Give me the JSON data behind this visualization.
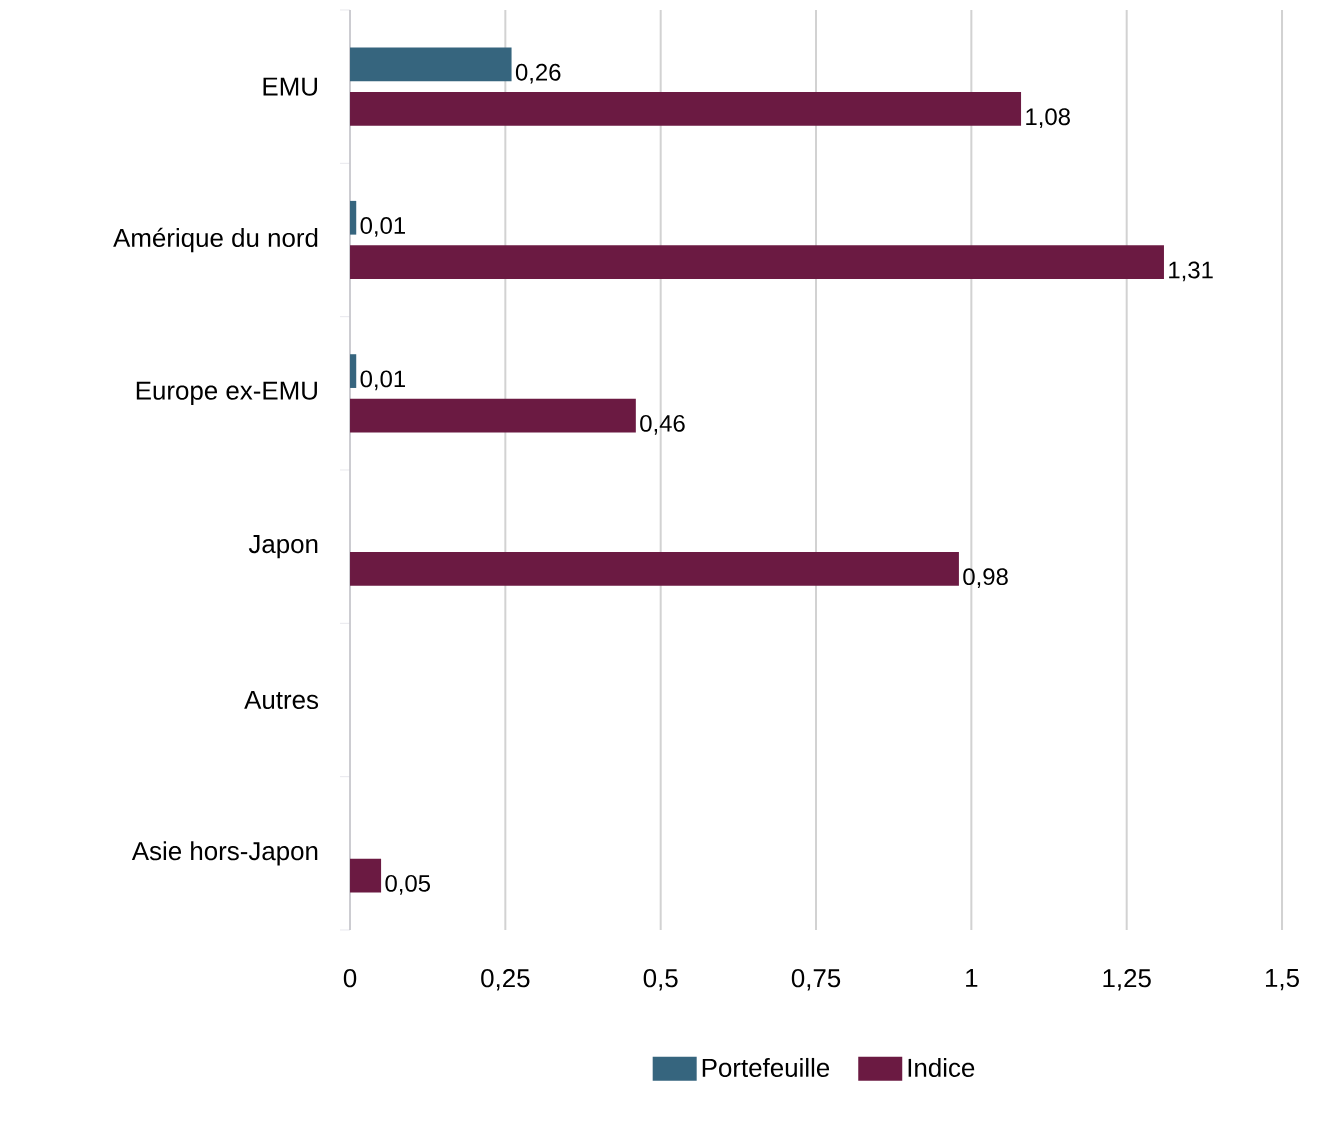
{
  "chart_data": {
    "type": "bar",
    "orientation": "horizontal",
    "categories": [
      "EMU",
      "Amérique du nord",
      "Europe ex-EMU",
      "Japon",
      "Autres",
      "Asie hors-Japon"
    ],
    "series": [
      {
        "name": "Portefeuille",
        "color": "#36657e",
        "values": [
          0.26,
          0.01,
          0.01,
          null,
          null,
          null
        ],
        "value_labels": [
          "0,26",
          "0,01",
          "0,01",
          null,
          null,
          null
        ]
      },
      {
        "name": "Indice",
        "color": "#6b1a42",
        "values": [
          1.08,
          1.31,
          0.46,
          0.98,
          null,
          0.05
        ],
        "value_labels": [
          "1,08",
          "1,31",
          "0,46",
          "0,98",
          null,
          "0,05"
        ]
      }
    ],
    "xlim": [
      0,
      1.5
    ],
    "xticks": [
      0,
      {
        "value": 0.25,
        "label": "0,25"
      },
      {
        "value": 0.5,
        "label": "0,5"
      },
      {
        "value": 0.75,
        "label": "0,75"
      },
      1,
      {
        "value": 1.25,
        "label": "1,25"
      },
      {
        "value": 1.5,
        "label": "1,5"
      }
    ],
    "grid": "x",
    "legend": "bottom"
  }
}
